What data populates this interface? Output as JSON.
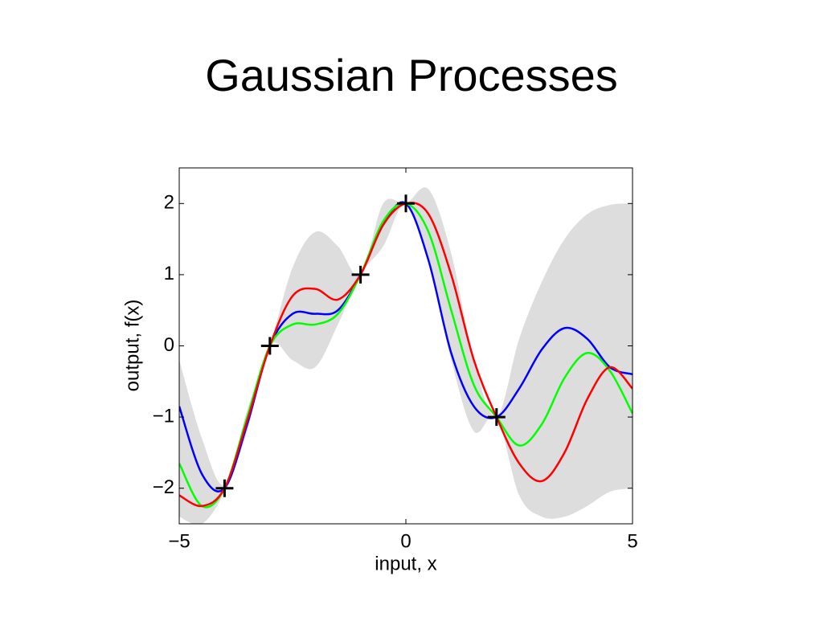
{
  "chart_data": {
    "type": "line",
    "title": "Gaussian Processes",
    "x_label": "input, x",
    "y_label": "output, f(x)",
    "x": [
      -5,
      -4.5,
      -4,
      -3.5,
      -3,
      -2.5,
      -2,
      -1.5,
      -1,
      -0.5,
      0,
      0.5,
      1,
      1.5,
      2,
      2.5,
      3,
      3.5,
      4,
      4.5,
      5
    ],
    "band": {
      "color": "#dddddd",
      "upper": [
        -0.2,
        -1.3,
        -1.95,
        -0.9,
        0,
        1.1,
        1.6,
        1.4,
        1,
        2.0,
        2,
        2.2,
        1.3,
        -0.2,
        -1,
        0.1,
        0.9,
        1.5,
        1.85,
        1.98,
        2.0
      ],
      "lower": [
        -2.4,
        -2.5,
        -2.05,
        -1.2,
        0,
        -0.2,
        -0.3,
        0.3,
        1,
        1.4,
        2,
        1.2,
        -0.2,
        -1.2,
        -1,
        -2.1,
        -2.4,
        -2.4,
        -2.25,
        -2.05,
        -2.0
      ]
    },
    "series": [
      {
        "color": "#0000ff",
        "values": [
          -0.85,
          -1.8,
          -2.0,
          -1.1,
          0,
          0.45,
          0.45,
          0.5,
          1,
          1.7,
          2,
          1.2,
          -0.1,
          -0.85,
          -1,
          -0.6,
          -0.05,
          0.25,
          0.1,
          -0.3,
          -0.4
        ]
      },
      {
        "color": "#00ff00",
        "values": [
          -1.65,
          -2.25,
          -2.0,
          -1.0,
          0,
          0.3,
          0.3,
          0.45,
          1,
          1.75,
          2,
          1.6,
          0.5,
          -0.55,
          -1,
          -1.4,
          -1.1,
          -0.45,
          -0.1,
          -0.35,
          -0.95
        ]
      },
      {
        "color": "#ff0000",
        "values": [
          -2.1,
          -2.25,
          -2.0,
          -1.05,
          0,
          0.7,
          0.8,
          0.65,
          1,
          1.7,
          2,
          1.85,
          1.0,
          -0.2,
          -1,
          -1.65,
          -1.9,
          -1.5,
          -0.75,
          -0.3,
          -0.6
        ]
      }
    ],
    "points": {
      "color": "#000000",
      "x": [
        -4,
        -3,
        -1,
        0,
        2
      ],
      "y": [
        -2,
        0,
        1,
        2,
        -1
      ]
    },
    "xlim": [
      -5,
      5
    ],
    "ylim": [
      -2.5,
      2.5
    ],
    "xticks": [
      {
        "value": -5,
        "label": "−5"
      },
      0,
      5
    ],
    "yticks": [
      {
        "value": -2,
        "label": "−2"
      },
      {
        "value": -1,
        "label": "−1"
      },
      0,
      1,
      2
    ]
  }
}
